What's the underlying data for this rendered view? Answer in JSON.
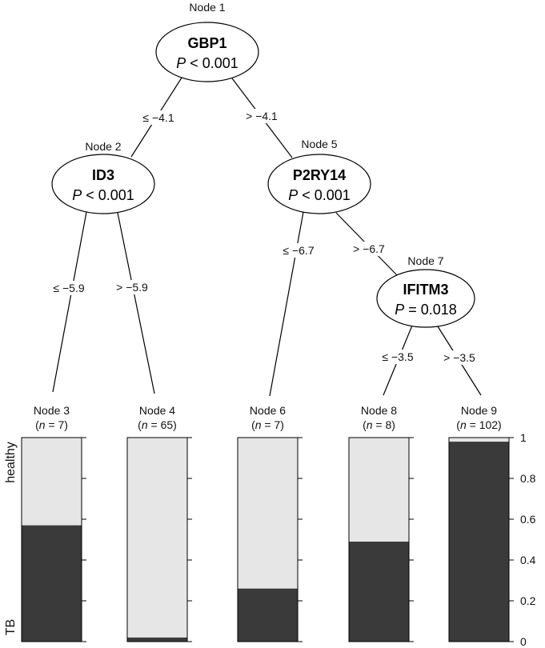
{
  "classes": [
    "healthy",
    "TB"
  ],
  "colors": {
    "healthy": "#e6e6e6",
    "tb": "#3a3a3a",
    "line": "#000000"
  },
  "inner_nodes": [
    {
      "id": "1",
      "label": "Node 1",
      "variable": "GBP1",
      "p_prefix": "P",
      "p_rest": " < 0.001"
    },
    {
      "id": "2",
      "label": "Node 2",
      "variable": "ID3",
      "p_prefix": "P",
      "p_rest": " < 0.001"
    },
    {
      "id": "5",
      "label": "Node 5",
      "variable": "P2RY14",
      "p_prefix": "P",
      "p_rest": " < 0.001"
    },
    {
      "id": "7",
      "label": "Node 7",
      "variable": "IFITM3",
      "p_prefix": "P",
      "p_rest": " = 0.018"
    }
  ],
  "edges": [
    {
      "from": "1",
      "to": "2",
      "label": "≤ −4.1"
    },
    {
      "from": "1",
      "to": "5",
      "label": "> −4.1"
    },
    {
      "from": "2",
      "to": "3",
      "label": "≤ −5.9"
    },
    {
      "from": "2",
      "to": "4",
      "label": "> −5.9"
    },
    {
      "from": "5",
      "to": "6",
      "label": "≤ −6.7"
    },
    {
      "from": "5",
      "to": "7",
      "label": "> −6.7"
    },
    {
      "from": "7",
      "to": "8",
      "label": "≤ −3.5"
    },
    {
      "from": "7",
      "to": "9",
      "label": "> −3.5"
    }
  ],
  "terminal_nodes": [
    {
      "id": "3",
      "label": "Node 3",
      "n_prefix": "n",
      "n_value": " = 7)",
      "tb": 0.57
    },
    {
      "id": "4",
      "label": "Node 4",
      "n_prefix": "n",
      "n_value": " = 65)",
      "tb": 0.02
    },
    {
      "id": "6",
      "label": "Node 6",
      "n_prefix": "n",
      "n_value": " = 7)",
      "tb": 0.26
    },
    {
      "id": "8",
      "label": "Node 8",
      "n_prefix": "n",
      "n_value": " = 8)",
      "tb": 0.49
    },
    {
      "id": "9",
      "label": "Node 9",
      "n_prefix": "n",
      "n_value": " = 102)",
      "tb": 0.98
    }
  ],
  "axis_ticks": [
    "0",
    "0.2",
    "0.4",
    "0.6",
    "0.8",
    "1"
  ]
}
